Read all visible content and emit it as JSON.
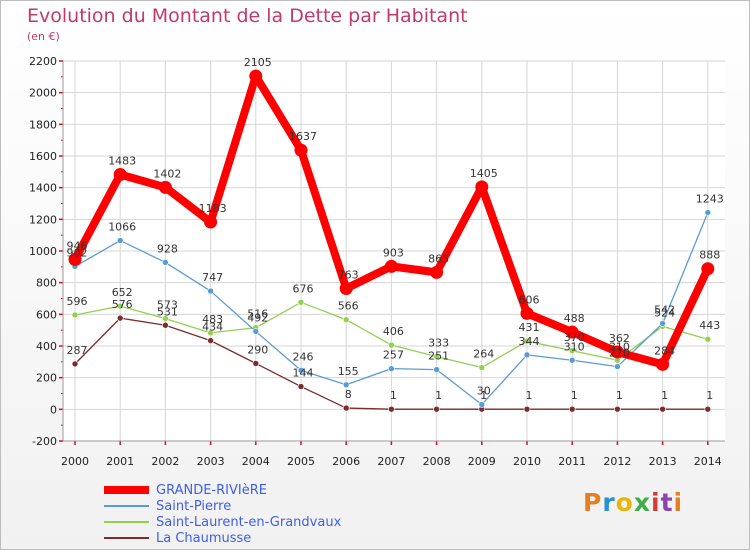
{
  "title": "Evolution du Montant de la Dette par Habitant",
  "subtitle": "(en €)",
  "logo": {
    "text": "Proxiti",
    "colors": [
      "#e67e22",
      "#2a8fd4",
      "#e8b50c",
      "#3fae49",
      "#d43b3b",
      "#8e44ad",
      "#e67e22"
    ]
  },
  "chart_data": {
    "type": "line",
    "title": "Evolution du Montant de la Dette par Habitant",
    "subtitle": "(en €)",
    "xlabel": "",
    "ylabel": "",
    "categories": [
      "2000",
      "2001",
      "2002",
      "2003",
      "2004",
      "2005",
      "2006",
      "2007",
      "2008",
      "2009",
      "2010",
      "2011",
      "2012",
      "2013",
      "2014"
    ],
    "yticks": [
      "-200",
      "0",
      "200",
      "400",
      "600",
      "800",
      "1000",
      "1200",
      "1400",
      "1600",
      "1800",
      "2000",
      "2200"
    ],
    "ylim": [
      -200,
      2200
    ],
    "grid": true,
    "legend_position": "bottom-left",
    "series": [
      {
        "name": "GRANDE-RIVIèRE",
        "color": "#ff0000",
        "thick": true,
        "values": [
          946,
          1483,
          1402,
          1183,
          2105,
          1637,
          763,
          903,
          865,
          1405,
          606,
          488,
          362,
          284,
          888
        ],
        "labels": [
          "946",
          "1483",
          "1402",
          "1183",
          "2105",
          "1637",
          "763",
          "903",
          "865",
          "1405",
          "606",
          "488",
          "362",
          "284",
          "888"
        ]
      },
      {
        "name": "Saint-Pierre",
        "color": "#5b9bd5",
        "thick": false,
        "values": [
          902,
          1066,
          928,
          747,
          492,
          246,
          155,
          257,
          251,
          30,
          344,
          310,
          270,
          542,
          1243
        ],
        "labels": [
          "902",
          "1066",
          "928",
          "747",
          "492",
          "246",
          "155",
          "257",
          "251",
          "30",
          "344",
          "310",
          "270",
          "542",
          "1243"
        ]
      },
      {
        "name": "Saint-Laurent-en-Grandvaux",
        "color": "#92d050",
        "thick": false,
        "values": [
          596,
          652,
          573,
          483,
          516,
          676,
          566,
          406,
          333,
          264,
          431,
          370,
          310,
          524,
          443
        ],
        "labels": [
          "596",
          "652",
          "573",
          "483",
          "516",
          "676",
          "566",
          "406",
          "333",
          "264",
          "431",
          "370",
          "310",
          "524",
          "443"
        ]
      },
      {
        "name": "La Chaumusse",
        "color": "#7b2c2c",
        "thick": false,
        "values": [
          287,
          576,
          531,
          434,
          290,
          144,
          8,
          1,
          1,
          1,
          1,
          1,
          1,
          1,
          1
        ],
        "labels": [
          "287",
          "576",
          "531",
          "434",
          "290",
          "144",
          "8",
          "1",
          "1",
          "1",
          "1",
          "1",
          "1",
          "1",
          "1"
        ]
      }
    ]
  }
}
